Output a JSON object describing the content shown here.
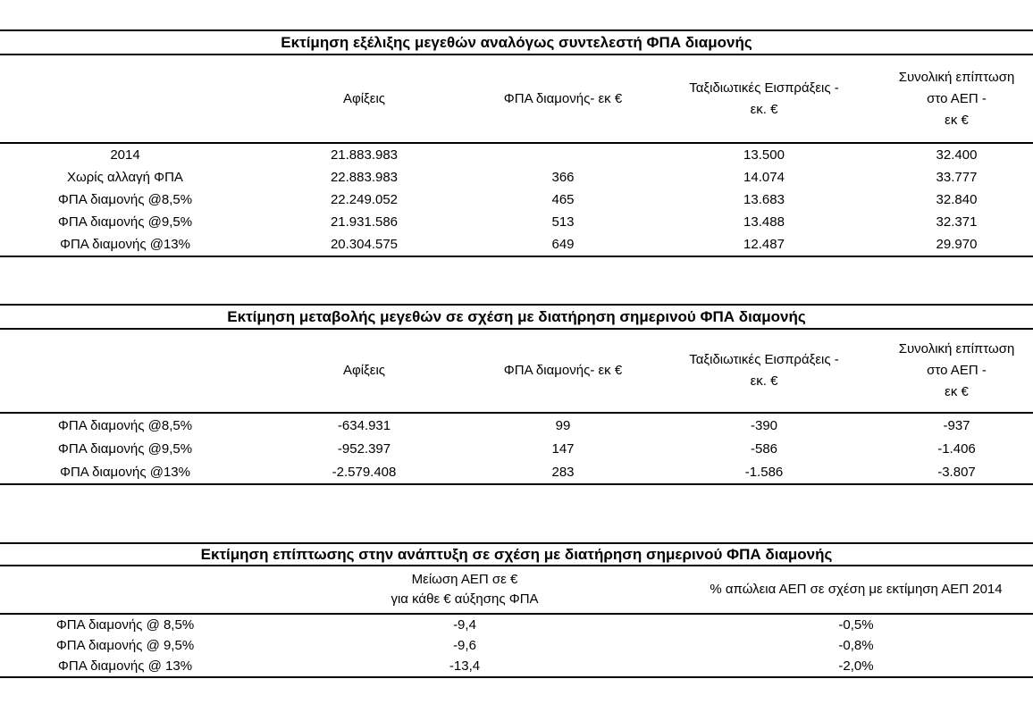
{
  "tables": [
    {
      "title": "Εκτίμηση εξέλιξης μεγεθών αναλόγως συντελεστή ΦΠΑ διαμονής",
      "headers": [
        {
          "lines": [
            "Αφίξεις"
          ]
        },
        {
          "lines": [
            "ΦΠΑ διαμονής- εκ €"
          ]
        },
        {
          "lines": [
            "Ταξιδιωτικές Εισπράξεις -",
            "εκ. €"
          ]
        },
        {
          "lines": [
            "Συνολική επίπτωση",
            "στο ΑΕΠ -",
            "εκ €"
          ]
        }
      ],
      "rows": [
        [
          "2014",
          "21.883.983",
          "",
          "13.500",
          "32.400"
        ],
        [
          "Χωρίς αλλαγή ΦΠΑ",
          "22.883.983",
          "366",
          "14.074",
          "33.777"
        ],
        [
          "ΦΠΑ διαμονής @8,5%",
          "22.249.052",
          "465",
          "13.683",
          "32.840"
        ],
        [
          "ΦΠΑ διαμονής @9,5%",
          "21.931.586",
          "513",
          "13.488",
          "32.371"
        ],
        [
          "ΦΠΑ διαμονής @13%",
          "20.304.575",
          "649",
          "12.487",
          "29.970"
        ]
      ]
    },
    {
      "title": "Εκτίμηση μεταβολής μεγεθών σε σχέση με διατήρηση σημερινού ΦΠΑ διαμονής",
      "headers": [
        {
          "lines": [
            "Αφίξεις"
          ]
        },
        {
          "lines": [
            "ΦΠΑ διαμονής- εκ €"
          ]
        },
        {
          "lines": [
            "Ταξιδιωτικές Εισπράξεις -",
            "εκ. €"
          ]
        },
        {
          "lines": [
            "Συνολική επίπτωση",
            "στο ΑΕΠ -",
            "εκ €"
          ]
        }
      ],
      "rows": [
        [
          "ΦΠΑ διαμονής @8,5%",
          "-634.931",
          "99",
          "-390",
          "-937"
        ],
        [
          "ΦΠΑ διαμονής @9,5%",
          "-952.397",
          "147",
          "-586",
          "-1.406"
        ],
        [
          "ΦΠΑ διαμονής @13%",
          "-2.579.408",
          "283",
          "-1.586",
          "-3.807"
        ]
      ]
    },
    {
      "title": "Εκτίμηση επίπτωσης στην ανάπτυξη σε σχέση με διατήρηση σημερινού ΦΠΑ διαμονής",
      "headers": [
        {
          "lines": [
            "Μείωση ΑΕΠ σε €",
            "για κάθε € αύξησης ΦΠΑ"
          ]
        },
        {
          "lines": [
            "% απώλεια ΑΕΠ σε σχέση με εκτίμηση ΑΕΠ 2014"
          ]
        }
      ],
      "rows": [
        [
          "ΦΠΑ διαμονής @ 8,5%",
          "-9,4",
          "-0,5%"
        ],
        [
          "ΦΠΑ διαμονής @ 9,5%",
          "-9,6",
          "-0,8%"
        ],
        [
          "ΦΠΑ διαμονής @ 13%",
          "-13,4",
          "-2,0%"
        ]
      ]
    }
  ]
}
